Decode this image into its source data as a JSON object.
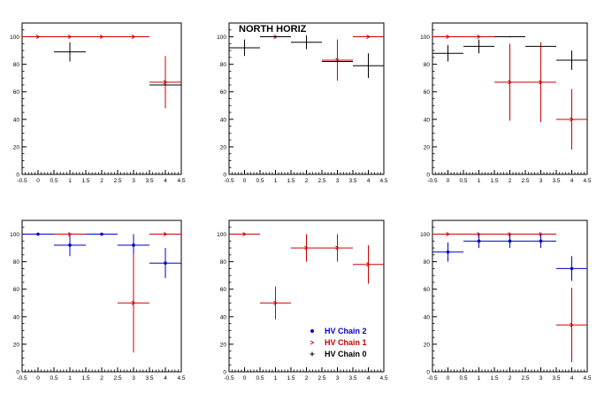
{
  "figure": {
    "title": "NORTH HORIZ",
    "legend": [
      {
        "label": "HV Chain 2",
        "color": "#0000cc",
        "marker": "dot"
      },
      {
        "label": "HV Chain 1",
        "color": "#cc0000",
        "marker": "arrow"
      },
      {
        "label": "HV Chain 0",
        "color": "#000000",
        "marker": "cross"
      }
    ]
  },
  "colors": {
    "chain2": "#0000cc",
    "chain1": "#cc0000",
    "chain0": "#000000"
  },
  "axes": {
    "xlim": [
      -0.5,
      4.5
    ],
    "ylim": [
      0,
      110
    ],
    "xticks": [
      "-0.5",
      "0",
      "0.5",
      "1",
      "1.5",
      "2",
      "2.5",
      "3",
      "3.5",
      "4",
      "4.5"
    ],
    "yticks": [
      "0",
      "20",
      "40",
      "60",
      "80",
      "100"
    ],
    "grid": false
  },
  "chart_data": [
    {
      "type": "scatter",
      "panel": "top-left",
      "series": [
        {
          "chain": "chain1",
          "points": [
            {
              "x": 0,
              "xerr": 0.5,
              "y": 100,
              "yerr": 0
            },
            {
              "x": 1,
              "xerr": 0.5,
              "y": 100,
              "yerr": 0
            },
            {
              "x": 2,
              "xerr": 0.5,
              "y": 100,
              "yerr": 0
            },
            {
              "x": 3,
              "xerr": 0.5,
              "y": 100,
              "yerr": 0
            },
            {
              "x": 4,
              "xerr": 0.5,
              "y": 67,
              "yerr": 19
            }
          ]
        },
        {
          "chain": "chain0",
          "points": [
            {
              "x": 1,
              "xerr": 0.5,
              "y": 89,
              "yerr": 7
            },
            {
              "x": 4,
              "xerr": 0.5,
              "y": 65,
              "yerr": 0
            }
          ]
        }
      ]
    },
    {
      "type": "scatter",
      "panel": "top-middle",
      "title": "NORTH HORIZ",
      "series": [
        {
          "chain": "chain1",
          "points": [
            {
              "x": 1,
              "xerr": 0.5,
              "y": 100,
              "yerr": 0
            },
            {
              "x": 3,
              "xerr": 0.5,
              "y": 83,
              "yerr": 15
            },
            {
              "x": 4,
              "xerr": 0.5,
              "y": 100,
              "yerr": 0
            }
          ]
        },
        {
          "chain": "chain0",
          "points": [
            {
              "x": 0,
              "xerr": 0.5,
              "y": 92,
              "yerr": 6
            },
            {
              "x": 1,
              "xerr": 0.5,
              "y": 100,
              "yerr": 0
            },
            {
              "x": 2,
              "xerr": 0.5,
              "y": 96,
              "yerr": 5
            },
            {
              "x": 3,
              "xerr": 0.5,
              "y": 82,
              "yerr": 0
            },
            {
              "x": 4,
              "xerr": 0.5,
              "y": 79,
              "yerr": 9
            }
          ]
        }
      ]
    },
    {
      "type": "scatter",
      "panel": "top-right",
      "series": [
        {
          "chain": "chain1",
          "points": [
            {
              "x": 0,
              "xerr": 0.5,
              "y": 100,
              "yerr": 0
            },
            {
              "x": 1,
              "xerr": 0.5,
              "y": 100,
              "yerr": 0
            },
            {
              "x": 2,
              "xerr": 0.5,
              "y": 67,
              "yerr": 28
            },
            {
              "x": 3,
              "xerr": 0.5,
              "y": 67,
              "yerr": 29
            },
            {
              "x": 4,
              "xerr": 0.5,
              "y": 40,
              "yerr": 22
            }
          ]
        },
        {
          "chain": "chain0",
          "points": [
            {
              "x": 0,
              "xerr": 0.5,
              "y": 88,
              "yerr": 6
            },
            {
              "x": 1,
              "xerr": 0.5,
              "y": 93,
              "yerr": 5
            },
            {
              "x": 2,
              "xerr": 0.5,
              "y": 100,
              "yerr": 0
            },
            {
              "x": 3,
              "xerr": 0.5,
              "y": 93,
              "yerr": 0
            },
            {
              "x": 4,
              "xerr": 0.5,
              "y": 83,
              "yerr": 7
            }
          ]
        }
      ]
    },
    {
      "type": "scatter",
      "panel": "bottom-left",
      "series": [
        {
          "chain": "chain2",
          "points": [
            {
              "x": 0,
              "xerr": 0.5,
              "y": 100,
              "yerr": 0
            },
            {
              "x": 1,
              "xerr": 0.5,
              "y": 92,
              "yerr": 8
            },
            {
              "x": 2,
              "xerr": 0.5,
              "y": 100,
              "yerr": 0
            },
            {
              "x": 3,
              "xerr": 0.5,
              "y": 92,
              "yerr": 8
            },
            {
              "x": 4,
              "xerr": 0.5,
              "y": 79,
              "yerr": 11
            }
          ]
        },
        {
          "chain": "chain1",
          "points": [
            {
              "x": 1,
              "xerr": 0.5,
              "y": 100,
              "yerr": 0
            },
            {
              "x": 3,
              "xerr": 0.5,
              "y": 50,
              "yerr": 36
            },
            {
              "x": 4,
              "xerr": 0.5,
              "y": 100,
              "yerr": 0
            }
          ]
        }
      ]
    },
    {
      "type": "scatter",
      "panel": "bottom-middle",
      "series": [
        {
          "chain": "chain1",
          "points": [
            {
              "x": 0,
              "xerr": 0.5,
              "y": 100,
              "yerr": 0
            },
            {
              "x": 1,
              "xerr": 0.5,
              "y": 50,
              "yerr": 12
            },
            {
              "x": 2,
              "xerr": 0.5,
              "y": 90,
              "yerr": 10
            },
            {
              "x": 3,
              "xerr": 0.5,
              "y": 90,
              "yerr": 10
            },
            {
              "x": 4,
              "xerr": 0.5,
              "y": 78,
              "yerr": 14
            }
          ]
        }
      ]
    },
    {
      "type": "scatter",
      "panel": "bottom-right",
      "series": [
        {
          "chain": "chain1",
          "points": [
            {
              "x": 0,
              "xerr": 0.5,
              "y": 100,
              "yerr": 0
            },
            {
              "x": 1,
              "xerr": 0.5,
              "y": 100,
              "yerr": 0
            },
            {
              "x": 2,
              "xerr": 0.5,
              "y": 100,
              "yerr": 0
            },
            {
              "x": 3,
              "xerr": 0.5,
              "y": 100,
              "yerr": 0
            },
            {
              "x": 4,
              "xerr": 0.5,
              "y": 34,
              "yerr": 27
            }
          ]
        },
        {
          "chain": "chain2",
          "points": [
            {
              "x": 0,
              "xerr": 0.5,
              "y": 87,
              "yerr": 7
            },
            {
              "x": 1,
              "xerr": 0.5,
              "y": 95,
              "yerr": 5
            },
            {
              "x": 2,
              "xerr": 0.5,
              "y": 95,
              "yerr": 5
            },
            {
              "x": 3,
              "xerr": 0.5,
              "y": 95,
              "yerr": 5
            },
            {
              "x": 4,
              "xerr": 0.5,
              "y": 75,
              "yerr": 9
            }
          ]
        }
      ]
    }
  ]
}
